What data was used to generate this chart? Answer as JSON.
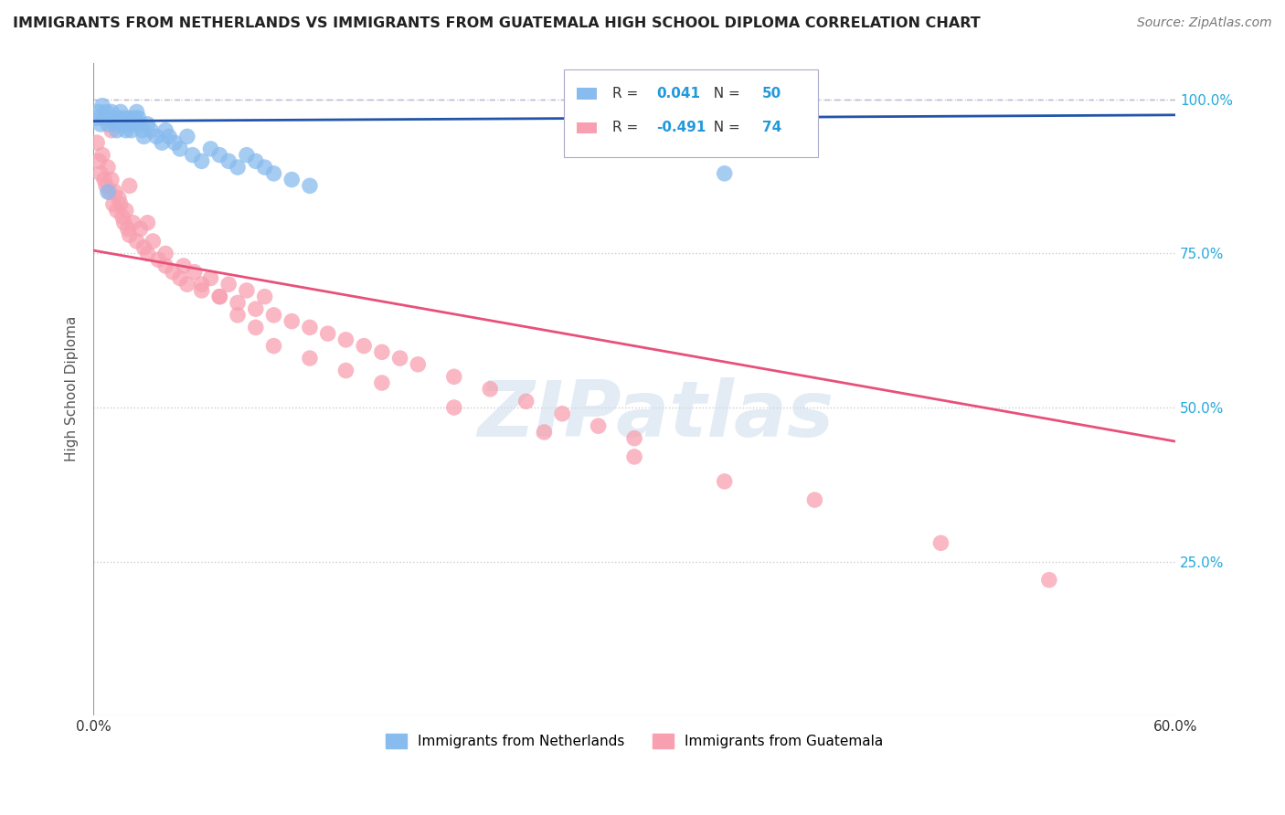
{
  "title": "IMMIGRANTS FROM NETHERLANDS VS IMMIGRANTS FROM GUATEMALA HIGH SCHOOL DIPLOMA CORRELATION CHART",
  "source": "Source: ZipAtlas.com",
  "ylabel": "High School Diploma",
  "xlim": [
    0.0,
    0.6
  ],
  "ylim": [
    0.0,
    1.06
  ],
  "x_ticks": [
    0.0,
    0.1,
    0.2,
    0.3,
    0.4,
    0.5,
    0.6
  ],
  "x_tick_labels": [
    "0.0%",
    "",
    "",
    "",
    "",
    "",
    "60.0%"
  ],
  "y_tick_vals_right": [
    1.0,
    0.75,
    0.5,
    0.25,
    0.0
  ],
  "y_tick_labels_right": [
    "100.0%",
    "75.0%",
    "50.0%",
    "25.0%",
    ""
  ],
  "legend1_label": "Immigrants from Netherlands",
  "legend2_label": "Immigrants from Guatemala",
  "R_netherlands": 0.041,
  "N_netherlands": 50,
  "R_guatemala": -0.491,
  "N_guatemala": 74,
  "netherlands_color": "#88bbee",
  "guatemala_color": "#f8a0b0",
  "netherlands_line_color": "#2255aa",
  "guatemala_line_color": "#e8507a",
  "watermark_text": "ZIPatlas",
  "netherlands_trend_y0": 0.965,
  "netherlands_trend_y1": 0.975,
  "guatemala_trend_y0": 0.755,
  "guatemala_trend_y1": 0.445,
  "netherlands_x": [
    0.002,
    0.003,
    0.004,
    0.005,
    0.006,
    0.007,
    0.008,
    0.009,
    0.01,
    0.011,
    0.012,
    0.013,
    0.014,
    0.015,
    0.016,
    0.017,
    0.018,
    0.019,
    0.02,
    0.021,
    0.022,
    0.023,
    0.024,
    0.025,
    0.026,
    0.027,
    0.028,
    0.03,
    0.032,
    0.035,
    0.038,
    0.04,
    0.042,
    0.045,
    0.048,
    0.052,
    0.055,
    0.06,
    0.065,
    0.07,
    0.075,
    0.08,
    0.085,
    0.09,
    0.095,
    0.1,
    0.11,
    0.12,
    0.35,
    0.008
  ],
  "netherlands_y": [
    0.97,
    0.98,
    0.96,
    0.99,
    0.97,
    0.98,
    0.96,
    0.97,
    0.98,
    0.97,
    0.96,
    0.95,
    0.97,
    0.98,
    0.96,
    0.97,
    0.95,
    0.96,
    0.97,
    0.95,
    0.96,
    0.97,
    0.98,
    0.97,
    0.96,
    0.95,
    0.94,
    0.96,
    0.95,
    0.94,
    0.93,
    0.95,
    0.94,
    0.93,
    0.92,
    0.94,
    0.91,
    0.9,
    0.92,
    0.91,
    0.9,
    0.89,
    0.91,
    0.9,
    0.89,
    0.88,
    0.87,
    0.86,
    0.88,
    0.85
  ],
  "guatemala_x": [
    0.002,
    0.003,
    0.004,
    0.005,
    0.006,
    0.007,
    0.008,
    0.009,
    0.01,
    0.011,
    0.012,
    0.013,
    0.014,
    0.015,
    0.016,
    0.017,
    0.018,
    0.019,
    0.02,
    0.022,
    0.024,
    0.026,
    0.028,
    0.03,
    0.033,
    0.036,
    0.04,
    0.044,
    0.048,
    0.052,
    0.056,
    0.06,
    0.065,
    0.07,
    0.075,
    0.08,
    0.085,
    0.09,
    0.095,
    0.1,
    0.11,
    0.12,
    0.13,
    0.14,
    0.15,
    0.16,
    0.17,
    0.18,
    0.2,
    0.22,
    0.24,
    0.26,
    0.28,
    0.3,
    0.01,
    0.02,
    0.03,
    0.04,
    0.05,
    0.06,
    0.07,
    0.08,
    0.09,
    0.1,
    0.12,
    0.14,
    0.16,
    0.2,
    0.25,
    0.3,
    0.35,
    0.4,
    0.47,
    0.53
  ],
  "guatemala_y": [
    0.93,
    0.9,
    0.88,
    0.91,
    0.87,
    0.86,
    0.89,
    0.85,
    0.87,
    0.83,
    0.85,
    0.82,
    0.84,
    0.83,
    0.81,
    0.8,
    0.82,
    0.79,
    0.78,
    0.8,
    0.77,
    0.79,
    0.76,
    0.75,
    0.77,
    0.74,
    0.73,
    0.72,
    0.71,
    0.7,
    0.72,
    0.69,
    0.71,
    0.68,
    0.7,
    0.67,
    0.69,
    0.66,
    0.68,
    0.65,
    0.64,
    0.63,
    0.62,
    0.61,
    0.6,
    0.59,
    0.58,
    0.57,
    0.55,
    0.53,
    0.51,
    0.49,
    0.47,
    0.45,
    0.95,
    0.86,
    0.8,
    0.75,
    0.73,
    0.7,
    0.68,
    0.65,
    0.63,
    0.6,
    0.58,
    0.56,
    0.54,
    0.5,
    0.46,
    0.42,
    0.38,
    0.35,
    0.28,
    0.22
  ]
}
